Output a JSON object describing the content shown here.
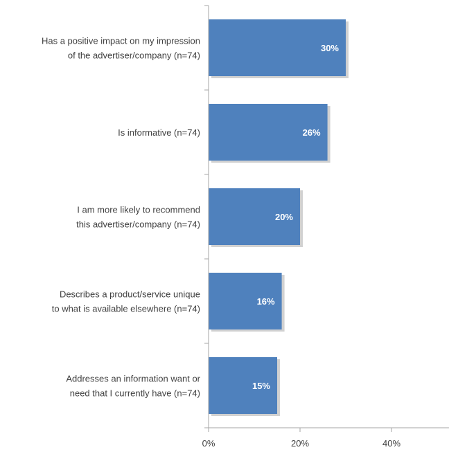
{
  "chart_data": {
    "type": "bar",
    "orientation": "horizontal",
    "categories": [
      [
        "Has a positive impact on my impression",
        "of the advertiser/company (n=74)"
      ],
      [
        "Is informative (n=74)"
      ],
      [
        "I am more likely to recommend",
        "this advertiser/company (n=74)"
      ],
      [
        "Describes a product/service unique",
        "to what is available elsewhere (n=74)"
      ],
      [
        "Addresses an information want or",
        "need that I currently have (n=74)"
      ]
    ],
    "values": [
      30,
      26,
      20,
      16,
      15
    ],
    "data_labels": [
      "30%",
      "26%",
      "20%",
      "16%",
      "15%"
    ],
    "xlim": [
      0,
      50
    ],
    "x_ticks": [
      0,
      20,
      40
    ],
    "x_tick_labels": [
      "0%",
      "20%",
      "40%"
    ],
    "bar_color": "#4F81BD",
    "axis_color": "#A6A6A6",
    "grid": false,
    "legend": "none"
  }
}
